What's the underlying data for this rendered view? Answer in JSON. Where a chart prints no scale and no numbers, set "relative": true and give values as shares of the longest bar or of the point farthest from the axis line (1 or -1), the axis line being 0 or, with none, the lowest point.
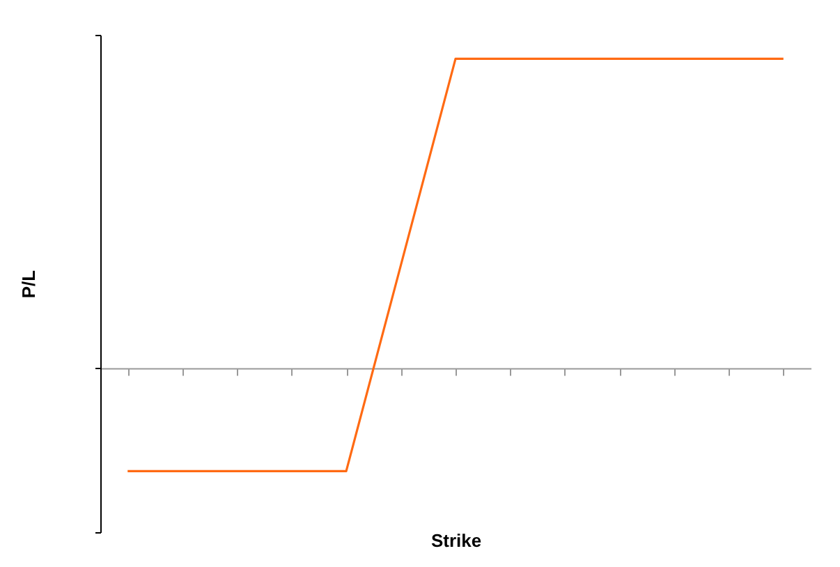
{
  "chart_data": {
    "type": "line",
    "xlabel": "Strike",
    "ylabel": "P/L",
    "relative": true,
    "categories": [
      null,
      null,
      null,
      null,
      null,
      null,
      null,
      null,
      null,
      null,
      null,
      null,
      null
    ],
    "series": [
      {
        "color": "#ff6a13",
        "values": [
          -0.333,
          -0.333,
          -0.333,
          -0.333,
          -0.333,
          0.333,
          1,
          1,
          1,
          1,
          1,
          1,
          1
        ]
      }
    ],
    "grid": false,
    "marker": "none",
    "line_style": "solid"
  }
}
